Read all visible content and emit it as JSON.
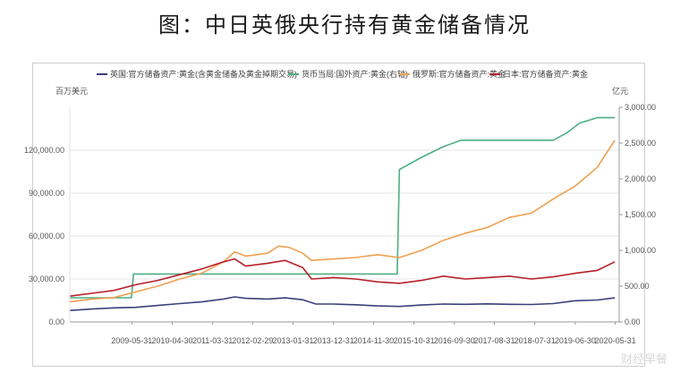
{
  "title": "图：中日英俄央行持有黄金储备情况",
  "chart_data": {
    "type": "line",
    "left_unit": "百万美元",
    "right_unit": "亿元",
    "y_left": {
      "min": 0,
      "max": 150000,
      "ticks": [
        0,
        30000,
        60000,
        90000,
        120000
      ],
      "tick_labels": [
        "0.00",
        "30,000.00",
        "60,000.00",
        "90,000.00",
        "120,000.00"
      ]
    },
    "y_right": {
      "min": 0,
      "max": 3000,
      "ticks": [
        0,
        500,
        1000,
        1500,
        2000,
        2500,
        3000
      ],
      "tick_labels": [
        "0.00",
        "500.00",
        "1,000.00",
        "1,500.00",
        "2,000.00",
        "2,500.00",
        "3,000.00"
      ]
    },
    "x_range": [
      2008.0,
      2020.5
    ],
    "x_tick_labels": [
      "2009-05-31",
      "2010-04-30",
      "2011-03-31",
      "2012-02-29",
      "2013-01-31",
      "2013-12-31",
      "2014-11-30",
      "2015-10-31",
      "2016-09-30",
      "2017-08-31",
      "2018-07-31",
      "2019-06-30",
      "2020-05-31"
    ],
    "x_tick_positions": [
      2009.41,
      2010.33,
      2011.25,
      2012.16,
      2013.08,
      2014.0,
      2014.91,
      2015.83,
      2016.75,
      2017.66,
      2018.58,
      2019.5,
      2020.41
    ],
    "grid": true,
    "legend_position": "top",
    "series": [
      {
        "name": "英国:官方储备资产:黄金(含黄金储备及黄金掉期交易)",
        "axis": "left",
        "color": "#3b3f7a",
        "x": [
          2008.0,
          2008.5,
          2009.0,
          2009.5,
          2010.0,
          2010.5,
          2011.0,
          2011.5,
          2011.75,
          2012.0,
          2012.5,
          2012.9,
          2013.3,
          2013.6,
          2014.0,
          2014.5,
          2015.0,
          2015.5,
          2016.0,
          2016.5,
          2017.0,
          2017.5,
          2018.0,
          2018.5,
          2019.0,
          2019.5,
          2020.0,
          2020.4
        ],
        "y": [
          8000,
          9000,
          9800,
          10200,
          11500,
          12800,
          14000,
          16000,
          17500,
          16500,
          16000,
          16800,
          15500,
          12500,
          12500,
          12000,
          11200,
          10800,
          11800,
          12500,
          12300,
          12600,
          12300,
          12200,
          12800,
          14800,
          15300,
          16800
        ]
      },
      {
        "name": "货币当局:国外资产:黄金(右轴)",
        "axis": "right",
        "color": "#4caf82",
        "x": [
          2008.0,
          2009.4,
          2009.45,
          2015.45,
          2015.5,
          2016.0,
          2016.5,
          2016.9,
          2019.0,
          2019.3,
          2019.6,
          2020.0,
          2020.4
        ],
        "y": [
          337,
          337,
          670,
          670,
          2130,
          2300,
          2450,
          2540,
          2540,
          2640,
          2780,
          2855,
          2855
        ]
      },
      {
        "name": "俄罗斯:官方储备资产:黄金",
        "axis": "left",
        "color": "#f0a050",
        "x": [
          2008.0,
          2008.5,
          2009.0,
          2009.5,
          2010.0,
          2010.5,
          2011.0,
          2011.5,
          2011.75,
          2012.0,
          2012.5,
          2012.75,
          2013.0,
          2013.3,
          2013.5,
          2014.0,
          2014.5,
          2015.0,
          2015.5,
          2016.0,
          2016.5,
          2017.0,
          2017.5,
          2018.0,
          2018.5,
          2019.0,
          2019.5,
          2020.0,
          2020.4
        ],
        "y": [
          14000,
          16000,
          17000,
          21000,
          25000,
          30000,
          34000,
          42000,
          49000,
          46000,
          48000,
          53000,
          52000,
          48000,
          43000,
          44000,
          45000,
          47000,
          45000,
          50000,
          57000,
          62000,
          66000,
          73000,
          76000,
          86000,
          95000,
          108000,
          127000
        ]
      },
      {
        "name": "日本:官方储备资产:黄金",
        "axis": "left",
        "color": "#b8202a",
        "x": [
          2008.0,
          2008.5,
          2009.0,
          2009.5,
          2010.0,
          2010.5,
          2011.0,
          2011.5,
          2011.75,
          2012.0,
          2012.5,
          2012.9,
          2013.3,
          2013.5,
          2014.0,
          2014.5,
          2015.0,
          2015.5,
          2016.0,
          2016.5,
          2017.0,
          2017.5,
          2018.0,
          2018.5,
          2019.0,
          2019.5,
          2020.0,
          2020.4
        ],
        "y": [
          18000,
          20000,
          22000,
          26000,
          29000,
          33000,
          37000,
          42000,
          44000,
          39000,
          41000,
          43000,
          38000,
          30000,
          31000,
          30000,
          28000,
          27000,
          29000,
          32000,
          30000,
          31000,
          32000,
          30000,
          31500,
          34000,
          36000,
          42000
        ]
      }
    ]
  },
  "watermark": "财经早餐"
}
